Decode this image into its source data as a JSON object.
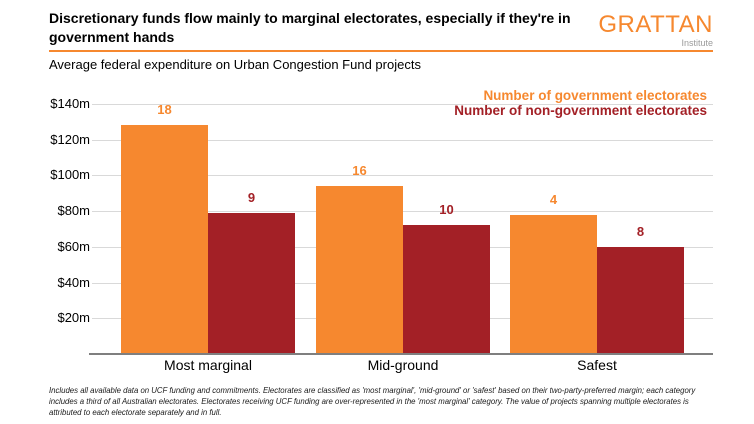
{
  "header": {
    "title": "Discretionary funds flow mainly to marginal electorates, especially if they're in government hands",
    "subtitle": "Average federal expenditure on Urban Congestion Fund projects",
    "logo": {
      "name": "GRATTAN",
      "sub": "Institute"
    }
  },
  "chart_data": {
    "type": "bar",
    "title": "Average federal expenditure on Urban Congestion Fund projects",
    "categories": [
      "Most marginal",
      "Mid-ground",
      "Safest"
    ],
    "series": [
      {
        "name": "Number of government electorates",
        "color": "#F6882F",
        "avg_expenditure_m": [
          128,
          94,
          78
        ],
        "electorate_counts": [
          18,
          16,
          4
        ]
      },
      {
        "name": "Number of non-government electorates",
        "color": "#A32026",
        "avg_expenditure_m": [
          79,
          72,
          60
        ],
        "electorate_counts": [
          9,
          10,
          8
        ]
      }
    ],
    "yticks": [
      "$140m",
      "$120m",
      "$100m",
      "$80m",
      "$60m",
      "$40m",
      "$20m"
    ],
    "ytick_values": [
      140,
      120,
      100,
      80,
      60,
      40,
      20
    ],
    "ylim": [
      0,
      140
    ],
    "ylabel": "",
    "xlabel": "",
    "grid": "horizontal",
    "legend_position": "top-right",
    "value_labels": "electorate counts shown above each bar"
  },
  "colors": {
    "accent_orange": "#F6882F",
    "dark_red": "#A32026",
    "gridline": "#D9D9D9",
    "axis_line": "#7F7F7F",
    "logo_sub_gray": "#9B9B9B"
  },
  "footnote": "Includes all available data on UCF funding and commitments. Electorates are classified as 'most marginal', 'mid-ground' or 'safest' based on their two-party-preferred margin; each category includes a third of all Australian electorates. Electorates receiving UCF funding are over-represented in the 'most marginal' category. The value of projects spanning multiple electorates is attributed to each electorate separately and in full."
}
